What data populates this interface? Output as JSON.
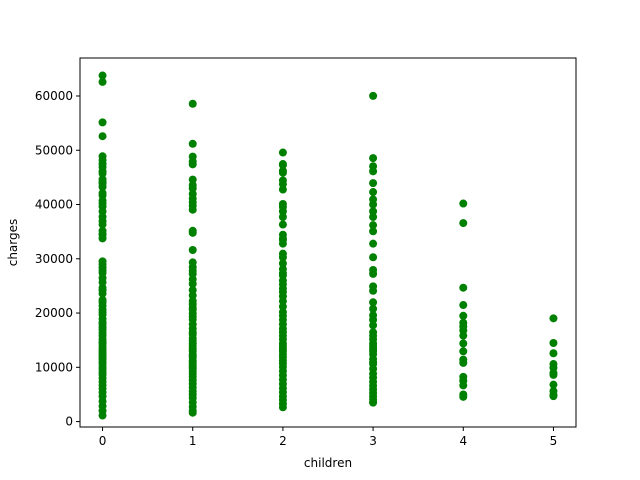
{
  "chart_data": {
    "type": "scatter",
    "title": "",
    "xlabel": "children",
    "ylabel": "charges",
    "xlim": [
      -0.25,
      5.25
    ],
    "ylim": [
      -1000,
      67000
    ],
    "xticks": [
      0,
      1,
      2,
      3,
      4,
      5
    ],
    "yticks": [
      0,
      10000,
      20000,
      30000,
      40000,
      50000,
      60000
    ],
    "grid": false,
    "legend": "none",
    "marker_color": "#008000",
    "series": [
      {
        "x": [
          0,
          0,
          0,
          0,
          0,
          0,
          0,
          0,
          0,
          0,
          0,
          0,
          0,
          0,
          0,
          0,
          0,
          0,
          0,
          0,
          0,
          0,
          0,
          0,
          0,
          0,
          0,
          0,
          0,
          0,
          0,
          0,
          0,
          0,
          0,
          0,
          0,
          0,
          0,
          0,
          0,
          0,
          0,
          0,
          0,
          0,
          0,
          0,
          0,
          0,
          0,
          0,
          0,
          0,
          0,
          0,
          0,
          0,
          0,
          0,
          0,
          0,
          0,
          0,
          0,
          0,
          0,
          0,
          0,
          0,
          0,
          0,
          0,
          0,
          0,
          0,
          1,
          1,
          1,
          1,
          1,
          1,
          1,
          1,
          1,
          1,
          1,
          1,
          1,
          1,
          1,
          1,
          1,
          1,
          1,
          1,
          1,
          1,
          1,
          1,
          1,
          1,
          1,
          1,
          1,
          1,
          1,
          1,
          1,
          1,
          1,
          1,
          1,
          1,
          1,
          1,
          1,
          1,
          1,
          1,
          1,
          1,
          1,
          1,
          1,
          1,
          1,
          1,
          1,
          1,
          1,
          1,
          1,
          1,
          1,
          1,
          1,
          1,
          2,
          2,
          2,
          2,
          2,
          2,
          2,
          2,
          2,
          2,
          2,
          2,
          2,
          2,
          2,
          2,
          2,
          2,
          2,
          2,
          2,
          2,
          2,
          2,
          2,
          2,
          2,
          2,
          2,
          2,
          2,
          2,
          2,
          2,
          2,
          2,
          2,
          2,
          2,
          2,
          2,
          2,
          2,
          2,
          2,
          2,
          2,
          2,
          2,
          2,
          2,
          2,
          2,
          2,
          2,
          2,
          2,
          3,
          3,
          3,
          3,
          3,
          3,
          3,
          3,
          3,
          3,
          3,
          3,
          3,
          3,
          3,
          3,
          3,
          3,
          3,
          3,
          3,
          3,
          3,
          3,
          3,
          3,
          3,
          3,
          3,
          3,
          3,
          3,
          3,
          3,
          3,
          3,
          3,
          3,
          3,
          3,
          3,
          3,
          3,
          3,
          3,
          4,
          4,
          4,
          4,
          4,
          4,
          4,
          4,
          4,
          4,
          4,
          4,
          4,
          4,
          4,
          4,
          4,
          4,
          5,
          5,
          5,
          5,
          5,
          5,
          5,
          5,
          5,
          5,
          5
        ],
        "y": [
          63770,
          62593,
          55135,
          52591,
          48885,
          48173,
          47496,
          46889,
          46113,
          45710,
          44641,
          44202,
          43896,
          43254,
          42112,
          41661,
          40720,
          40182,
          39611,
          38711,
          37742,
          36950,
          36307,
          35160,
          34617,
          34439,
          33750,
          29523,
          28950,
          28340,
          27808,
          27375,
          26467,
          25678,
          24667,
          24180,
          23568,
          22412,
          21984,
          21344,
          20630,
          20178,
          19719,
          18955,
          18310,
          17929,
          17361,
          16884,
          16297,
          15820,
          15170,
          14712,
          14394,
          13919,
          13405,
          12950,
          12557,
          12222,
          11881,
          11454,
          10977,
          10601,
          10045,
          9644,
          9102,
          8605,
          7985,
          7345,
          6710,
          6079,
          5415,
          4646,
          3757,
          2855,
          1990,
          1121,
          58571,
          51194,
          48824,
          47928,
          47403,
          44585,
          43578,
          42969,
          41949,
          41097,
          40419,
          39774,
          39047,
          35160,
          34779,
          31620,
          29330,
          28468,
          27808,
          27218,
          26236,
          25382,
          24227,
          23241,
          22218,
          21596,
          20984,
          20630,
          19964,
          19350,
          18804,
          17929,
          17128,
          16450,
          16069,
          15359,
          14901,
          14394,
          13919,
          13405,
          12950,
          12404,
          12146,
          11830,
          11264,
          10923,
          10493,
          10085,
          9722,
          9288,
          8782,
          8233,
          7639,
          6948,
          6272,
          5584,
          4992,
          4349,
          3561,
          2741,
          2007,
          1631,
          49577,
          47462,
          47269,
          46200,
          45863,
          44423,
          43753,
          42760,
          40103,
          39556,
          38746,
          37701,
          36307,
          34439,
          33732,
          33475,
          32787,
          30942,
          30259,
          29141,
          28101,
          27322,
          26926,
          25993,
          25309,
          24513,
          23887,
          23082,
          22192,
          21195,
          20167,
          19515,
          18767,
          17929,
          17085,
          16450,
          15820,
          15170,
          14394,
          13919,
          13405,
          12950,
          12404,
          11881,
          11264,
          10704,
          10052,
          9301,
          8527,
          7731,
          6929,
          6143,
          5397,
          4618,
          3981,
          3267,
          2639,
          60021,
          48549,
          47055,
          46113,
          43943,
          42303,
          40941,
          40003,
          38746,
          37701,
          36197,
          35069,
          32787,
          30284,
          27941,
          27218,
          24915,
          24106,
          21984,
          20781,
          19594,
          18767,
          17748,
          16450,
          15820,
          15170,
          14394,
          13919,
          13405,
          12950,
          12404,
          11512,
          10923,
          10600,
          9722,
          8827,
          8101,
          7345,
          6600,
          5910,
          5267,
          4666,
          4133,
          3660,
          3481,
          40182,
          36580,
          24671,
          21472,
          19496,
          18223,
          17496,
          16794,
          15828,
          14394,
          12949,
          11415,
          10820,
          8236,
          7512,
          6666,
          5000,
          4561,
          19023,
          14478,
          12592,
          10600,
          9910,
          8965,
          8596,
          6799,
          5615,
          4916,
          4687
        ]
      }
    ]
  }
}
